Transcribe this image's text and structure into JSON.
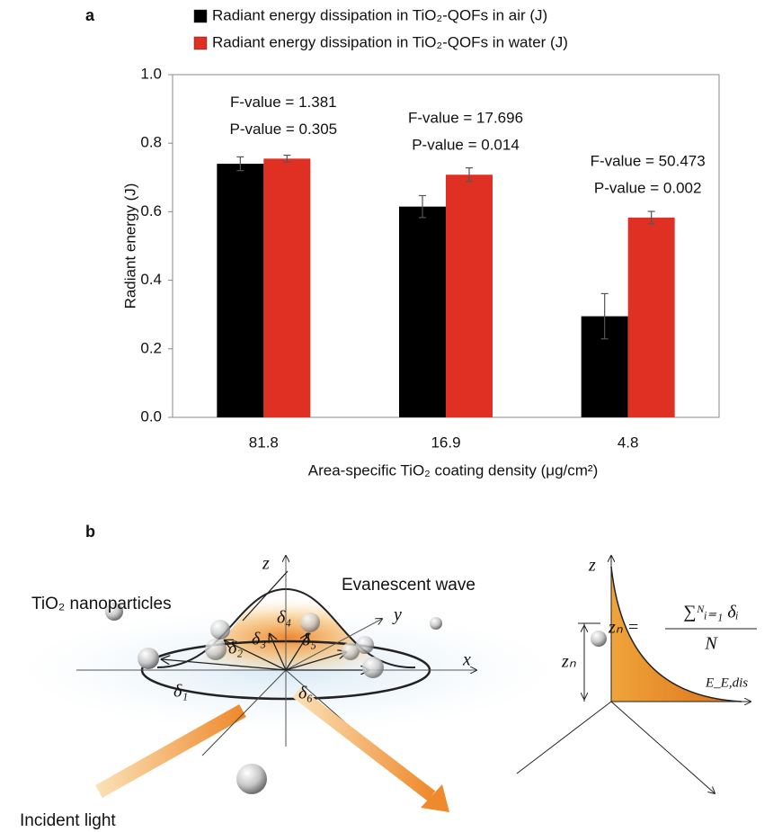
{
  "chart_data": {
    "type": "bar",
    "panel_label": "a",
    "ylabel": "Radiant energy (J)",
    "xlabel": "Area-specific TiO₂ coating density (μg/cm²)",
    "categories": [
      "81.8",
      "16.9",
      "4.8"
    ],
    "series": [
      {
        "name": "Radiant energy dissipation in TiO₂-QOFs in air (J)",
        "color": "#000000",
        "values": [
          0.74,
          0.615,
          0.295
        ],
        "errors": [
          0.02,
          0.032,
          0.066
        ]
      },
      {
        "name": "Radiant energy dissipation in TiO₂-QOFs in water (J)",
        "color": "#e03024",
        "values": [
          0.755,
          0.708,
          0.583
        ],
        "errors": [
          0.01,
          0.02,
          0.018
        ]
      }
    ],
    "annotations": [
      [
        "F-value = 1.381",
        "P-value = 0.305"
      ],
      [
        "F-value = 17.696",
        "P-value = 0.014"
      ],
      [
        "F-value = 50.473",
        "P-value = 0.002"
      ]
    ],
    "ylim": [
      0,
      1
    ],
    "yticks": [
      {
        "value": 0,
        "label": "0.0"
      },
      0.2,
      0.4,
      0.6,
      0.8,
      {
        "value": 1,
        "label": "1.0"
      }
    ],
    "legend": "top"
  },
  "diagram": {
    "panel_label": "b",
    "z_left": "z",
    "z_right": "z",
    "evanescent": "Evanescent wave",
    "y": "y",
    "x": "x",
    "nanoparticles": "TiO₂ nanoparticles",
    "incident": "Incident light",
    "deltas": [
      "δ₁",
      "δ₂",
      "δ₃",
      "δ₄",
      "δ₅",
      "δ₆"
    ],
    "zn": "zₙ",
    "energy_axis": "E_E,dis",
    "formula": {
      "lhs": "zₙ =",
      "numerator": "∑ᴺᵢ₌₁ δᵢ",
      "denominator": "N"
    }
  }
}
